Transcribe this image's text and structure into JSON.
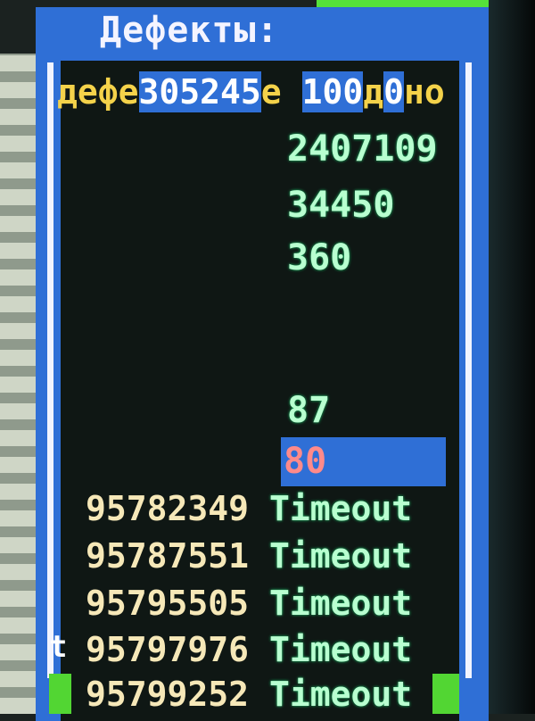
{
  "dialog": {
    "title": "Дефекты:"
  },
  "header_segments": [
    {
      "text": "дефе",
      "style": "yellow"
    },
    {
      "text": "305245",
      "style": "white-blue"
    },
    {
      "text": "е ",
      "style": "yellow"
    },
    {
      "text": "100",
      "style": "white-blue"
    },
    {
      "text": "д",
      "style": "yellow"
    },
    {
      "text": "0",
      "style": "white-blue"
    },
    {
      "text": "но",
      "style": "yellow"
    }
  ],
  "values": [
    "2407109",
    "34450",
    "360",
    "87"
  ],
  "selected_value": "80",
  "defects": [
    {
      "id": "95782349",
      "status": "Timeout"
    },
    {
      "id": "95787551",
      "status": "Timeout"
    },
    {
      "id": "95795505",
      "status": "Timeout"
    },
    {
      "id": "95797976",
      "status": "Timeout"
    },
    {
      "id": "95799252",
      "status": "Timeout"
    }
  ],
  "edge_char": "t",
  "colors": {
    "panel": "#2f6fd6",
    "text_yellow": "#f4d24a",
    "text_green": "#b8ffd0",
    "selected_red": "#ff8a8a",
    "accent_green": "#55e23a"
  }
}
